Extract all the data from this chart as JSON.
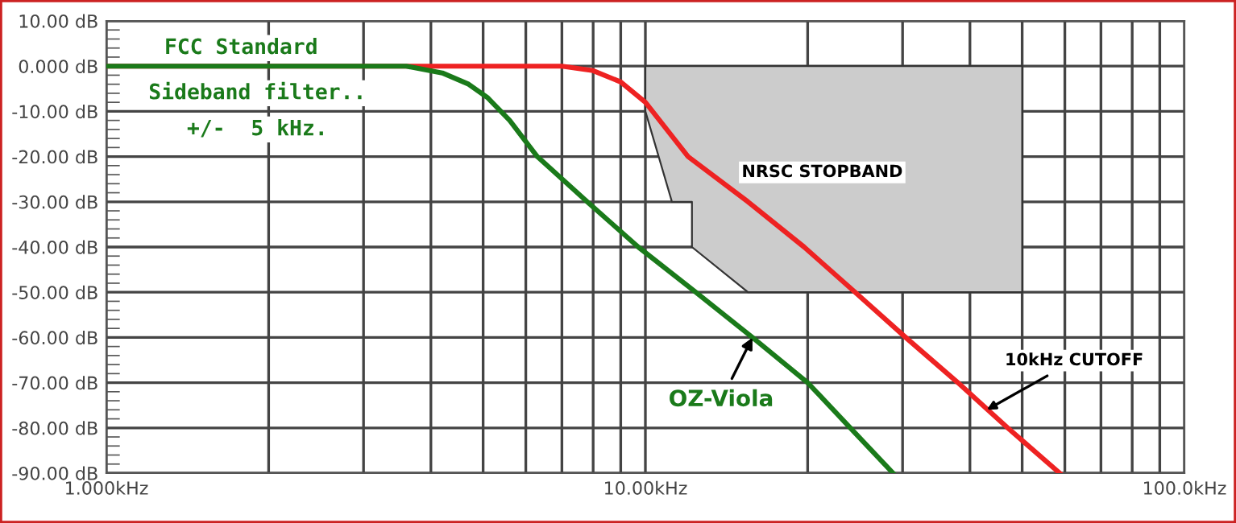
{
  "chart_data": {
    "type": "line",
    "xlim": [
      1,
      100
    ],
    "ylim": [
      -90,
      10
    ],
    "log": "x",
    "xticks": [
      {
        "value": 1,
        "label": "1.000kHz"
      },
      {
        "value": 10,
        "label": "10.00kHz"
      },
      {
        "value": 100,
        "label": "100.0kHz"
      }
    ],
    "yticks": [
      {
        "value": 10,
        "label": "10.00 dB"
      },
      {
        "value": 0,
        "label": "0.000 dB"
      },
      {
        "value": -10,
        "label": "-10.00 dB"
      },
      {
        "value": -20,
        "label": "-20.00 dB"
      },
      {
        "value": -30,
        "label": "-30.00 dB"
      },
      {
        "value": -40,
        "label": "-40.00 dB"
      },
      {
        "value": -50,
        "label": "-50.00 dB"
      },
      {
        "value": -60,
        "label": "-60.00 dB"
      },
      {
        "value": -70,
        "label": "-70.00 dB"
      },
      {
        "value": -80,
        "label": "-80.00 dB"
      },
      {
        "value": -90,
        "label": "-90.00 dB"
      }
    ],
    "grid": true,
    "legend": false,
    "marker": "none",
    "line_style": "solid",
    "series": [
      {
        "type": "area",
        "color": "#cccccc",
        "x": [
          10,
          10,
          11.2,
          12.2,
          12.2,
          15.5,
          50
        ],
        "values": [
          -10,
          -10,
          -30,
          -30,
          -40,
          -50,
          -50
        ]
      },
      {
        "color": "#ee2222",
        "x": [
          1,
          7,
          8,
          9,
          10,
          12,
          15.5,
          19.7,
          24.5,
          30.4,
          38,
          47,
          58.7
        ],
        "values": [
          0,
          0,
          -1,
          -3.5,
          -8,
          -20,
          -30,
          -40,
          -50,
          -60,
          -70,
          -80,
          -90
        ]
      },
      {
        "color": "#1a7a1a",
        "x": [
          1,
          3.6,
          4.2,
          4.7,
          5.1,
          5.6,
          6.3,
          7.8,
          9.7,
          12.4,
          15.8,
          20,
          24,
          28.8
        ],
        "values": [
          0,
          0,
          -1.5,
          -4,
          -7,
          -12,
          -20,
          -30,
          -40,
          -50,
          -60,
          -70,
          -80,
          -90
        ]
      }
    ],
    "annotations": [
      "FCC Standard",
      "Sideband filter..",
      "+/-  5 kHz.",
      "NRSC STOPBAND",
      {
        "text": "OZ-Viola",
        "x": 15.8,
        "y": -60
      },
      {
        "text": "10kHz CUTOFF",
        "x": 43,
        "y": -76
      }
    ]
  }
}
